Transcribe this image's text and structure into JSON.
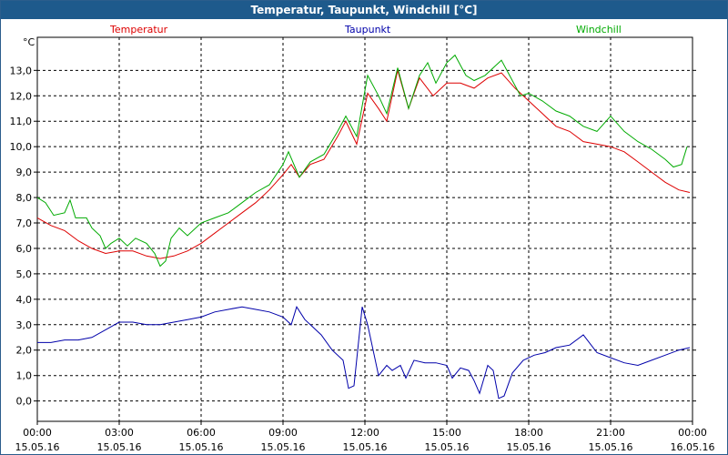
{
  "window": {
    "title": "Temperatur, Taupunkt, Windchill [°C]"
  },
  "chart_data": {
    "type": "line",
    "title": "Temperatur, Taupunkt, Windchill [°C]",
    "ylabel": "°C",
    "ylim": [
      -0.8,
      14.3
    ],
    "xlim": [
      0,
      24
    ],
    "grid": true,
    "legend_placement": "top",
    "y_ticks": [
      {
        "value": 0,
        "label": "0,0"
      },
      {
        "value": 1,
        "label": "1,0"
      },
      {
        "value": 2,
        "label": "2,0"
      },
      {
        "value": 3,
        "label": "3,0"
      },
      {
        "value": 4,
        "label": "4,0"
      },
      {
        "value": 5,
        "label": "5,0"
      },
      {
        "value": 6,
        "label": "6,0"
      },
      {
        "value": 7,
        "label": "7,0"
      },
      {
        "value": 8,
        "label": "8,0"
      },
      {
        "value": 9,
        "label": "9,0"
      },
      {
        "value": 10,
        "label": "10,0"
      },
      {
        "value": 11,
        "label": "11,0"
      },
      {
        "value": 12,
        "label": "12,0"
      },
      {
        "value": 13,
        "label": "13,0"
      }
    ],
    "x_ticks": [
      {
        "hour": 0,
        "time": "00:00",
        "date": "15.05.16"
      },
      {
        "hour": 3,
        "time": "03:00",
        "date": "15.05.16"
      },
      {
        "hour": 6,
        "time": "06:00",
        "date": "15.05.16"
      },
      {
        "hour": 9,
        "time": "09:00",
        "date": "15.05.16"
      },
      {
        "hour": 12,
        "time": "12:00",
        "date": "15.05.16"
      },
      {
        "hour": 15,
        "time": "15:00",
        "date": "15.05.16"
      },
      {
        "hour": 18,
        "time": "18:00",
        "date": "15.05.16"
      },
      {
        "hour": 21,
        "time": "21:00",
        "date": "15.05.16"
      },
      {
        "hour": 24,
        "time": "00:00",
        "date": "16.05.16"
      }
    ],
    "series": [
      {
        "name": "Temperatur",
        "color": "#dd0000",
        "points": [
          [
            0,
            7.2
          ],
          [
            0.5,
            6.9
          ],
          [
            1,
            6.7
          ],
          [
            1.5,
            6.3
          ],
          [
            2,
            6.0
          ],
          [
            2.5,
            5.8
          ],
          [
            3,
            5.9
          ],
          [
            3.5,
            5.9
          ],
          [
            4,
            5.7
          ],
          [
            4.5,
            5.6
          ],
          [
            5,
            5.7
          ],
          [
            5.5,
            5.9
          ],
          [
            6,
            6.2
          ],
          [
            6.5,
            6.6
          ],
          [
            7,
            7.0
          ],
          [
            7.5,
            7.4
          ],
          [
            8,
            7.8
          ],
          [
            8.5,
            8.3
          ],
          [
            9,
            8.9
          ],
          [
            9.3,
            9.3
          ],
          [
            9.6,
            8.8
          ],
          [
            10,
            9.3
          ],
          [
            10.5,
            9.5
          ],
          [
            11,
            10.4
          ],
          [
            11.3,
            11.0
          ],
          [
            11.7,
            10.1
          ],
          [
            12.1,
            12.1
          ],
          [
            12.5,
            11.5
          ],
          [
            12.8,
            11.0
          ],
          [
            13.2,
            13.0
          ],
          [
            13.6,
            11.5
          ],
          [
            14,
            12.7
          ],
          [
            14.5,
            12.0
          ],
          [
            15,
            12.5
          ],
          [
            15.5,
            12.5
          ],
          [
            16,
            12.3
          ],
          [
            16.5,
            12.7
          ],
          [
            17,
            12.9
          ],
          [
            17.5,
            12.3
          ],
          [
            18,
            11.8
          ],
          [
            18.5,
            11.3
          ],
          [
            19,
            10.8
          ],
          [
            19.5,
            10.6
          ],
          [
            20,
            10.2
          ],
          [
            20.5,
            10.1
          ],
          [
            21,
            10.0
          ],
          [
            21.5,
            9.8
          ],
          [
            22,
            9.4
          ],
          [
            22.5,
            9.0
          ],
          [
            23,
            8.6
          ],
          [
            23.5,
            8.3
          ],
          [
            23.9,
            8.2
          ]
        ]
      },
      {
        "name": "Taupunkt",
        "color": "#0000aa",
        "points": [
          [
            0,
            2.3
          ],
          [
            0.5,
            2.3
          ],
          [
            1,
            2.4
          ],
          [
            1.5,
            2.4
          ],
          [
            2,
            2.5
          ],
          [
            2.5,
            2.8
          ],
          [
            3,
            3.1
          ],
          [
            3.5,
            3.1
          ],
          [
            4,
            3.0
          ],
          [
            4.5,
            3.0
          ],
          [
            5,
            3.1
          ],
          [
            5.5,
            3.2
          ],
          [
            6,
            3.3
          ],
          [
            6.5,
            3.5
          ],
          [
            7,
            3.6
          ],
          [
            7.5,
            3.7
          ],
          [
            8,
            3.6
          ],
          [
            8.5,
            3.5
          ],
          [
            9,
            3.3
          ],
          [
            9.3,
            3.0
          ],
          [
            9.5,
            3.7
          ],
          [
            9.8,
            3.2
          ],
          [
            10,
            3.0
          ],
          [
            10.4,
            2.6
          ],
          [
            10.8,
            2.0
          ],
          [
            11.2,
            1.6
          ],
          [
            11.4,
            0.5
          ],
          [
            11.6,
            0.6
          ],
          [
            11.9,
            3.7
          ],
          [
            12.1,
            3.0
          ],
          [
            12.3,
            2.0
          ],
          [
            12.5,
            1.0
          ],
          [
            12.8,
            1.4
          ],
          [
            13,
            1.2
          ],
          [
            13.3,
            1.4
          ],
          [
            13.5,
            0.9
          ],
          [
            13.8,
            1.6
          ],
          [
            14.2,
            1.5
          ],
          [
            14.6,
            1.5
          ],
          [
            15,
            1.4
          ],
          [
            15.2,
            0.9
          ],
          [
            15.5,
            1.3
          ],
          [
            15.8,
            1.2
          ],
          [
            16,
            0.8
          ],
          [
            16.2,
            0.3
          ],
          [
            16.5,
            1.4
          ],
          [
            16.7,
            1.2
          ],
          [
            16.9,
            0.1
          ],
          [
            17.1,
            0.2
          ],
          [
            17.4,
            1.1
          ],
          [
            17.8,
            1.6
          ],
          [
            18.2,
            1.8
          ],
          [
            18.6,
            1.9
          ],
          [
            19,
            2.1
          ],
          [
            19.5,
            2.2
          ],
          [
            20,
            2.6
          ],
          [
            20.5,
            1.9
          ],
          [
            21,
            1.7
          ],
          [
            21.5,
            1.5
          ],
          [
            22,
            1.4
          ],
          [
            22.5,
            1.6
          ],
          [
            23,
            1.8
          ],
          [
            23.5,
            2.0
          ],
          [
            23.9,
            2.1
          ]
        ]
      },
      {
        "name": "Windchill",
        "color": "#00aa00",
        "points": [
          [
            0,
            8.0
          ],
          [
            0.3,
            7.8
          ],
          [
            0.6,
            7.3
          ],
          [
            1,
            7.4
          ],
          [
            1.2,
            7.9
          ],
          [
            1.4,
            7.2
          ],
          [
            1.8,
            7.2
          ],
          [
            2,
            6.8
          ],
          [
            2.3,
            6.5
          ],
          [
            2.5,
            6.0
          ],
          [
            2.7,
            6.2
          ],
          [
            3,
            6.4
          ],
          [
            3.3,
            6.1
          ],
          [
            3.6,
            6.4
          ],
          [
            4,
            6.2
          ],
          [
            4.3,
            5.8
          ],
          [
            4.5,
            5.3
          ],
          [
            4.7,
            5.5
          ],
          [
            4.9,
            6.4
          ],
          [
            5.2,
            6.8
          ],
          [
            5.5,
            6.5
          ],
          [
            6,
            7.0
          ],
          [
            6.5,
            7.2
          ],
          [
            7,
            7.4
          ],
          [
            7.5,
            7.8
          ],
          [
            8,
            8.2
          ],
          [
            8.5,
            8.5
          ],
          [
            9,
            9.3
          ],
          [
            9.2,
            9.8
          ],
          [
            9.6,
            8.8
          ],
          [
            10,
            9.4
          ],
          [
            10.5,
            9.7
          ],
          [
            11,
            10.6
          ],
          [
            11.3,
            11.2
          ],
          [
            11.7,
            10.4
          ],
          [
            12.1,
            12.8
          ],
          [
            12.5,
            12.0
          ],
          [
            12.8,
            11.3
          ],
          [
            13.2,
            13.1
          ],
          [
            13.6,
            11.5
          ],
          [
            14,
            12.8
          ],
          [
            14.3,
            13.3
          ],
          [
            14.6,
            12.5
          ],
          [
            15,
            13.3
          ],
          [
            15.3,
            13.6
          ],
          [
            15.7,
            12.8
          ],
          [
            16,
            12.6
          ],
          [
            16.4,
            12.8
          ],
          [
            16.8,
            13.2
          ],
          [
            17,
            13.4
          ],
          [
            17.3,
            12.8
          ],
          [
            17.7,
            12.0
          ],
          [
            18,
            12.1
          ],
          [
            18.5,
            11.8
          ],
          [
            19,
            11.4
          ],
          [
            19.5,
            11.2
          ],
          [
            20,
            10.8
          ],
          [
            20.5,
            10.6
          ],
          [
            21,
            11.2
          ],
          [
            21.5,
            10.6
          ],
          [
            22,
            10.2
          ],
          [
            22.5,
            9.9
          ],
          [
            23,
            9.5
          ],
          [
            23.3,
            9.2
          ],
          [
            23.6,
            9.3
          ],
          [
            23.8,
            10.0
          ]
        ]
      }
    ]
  }
}
